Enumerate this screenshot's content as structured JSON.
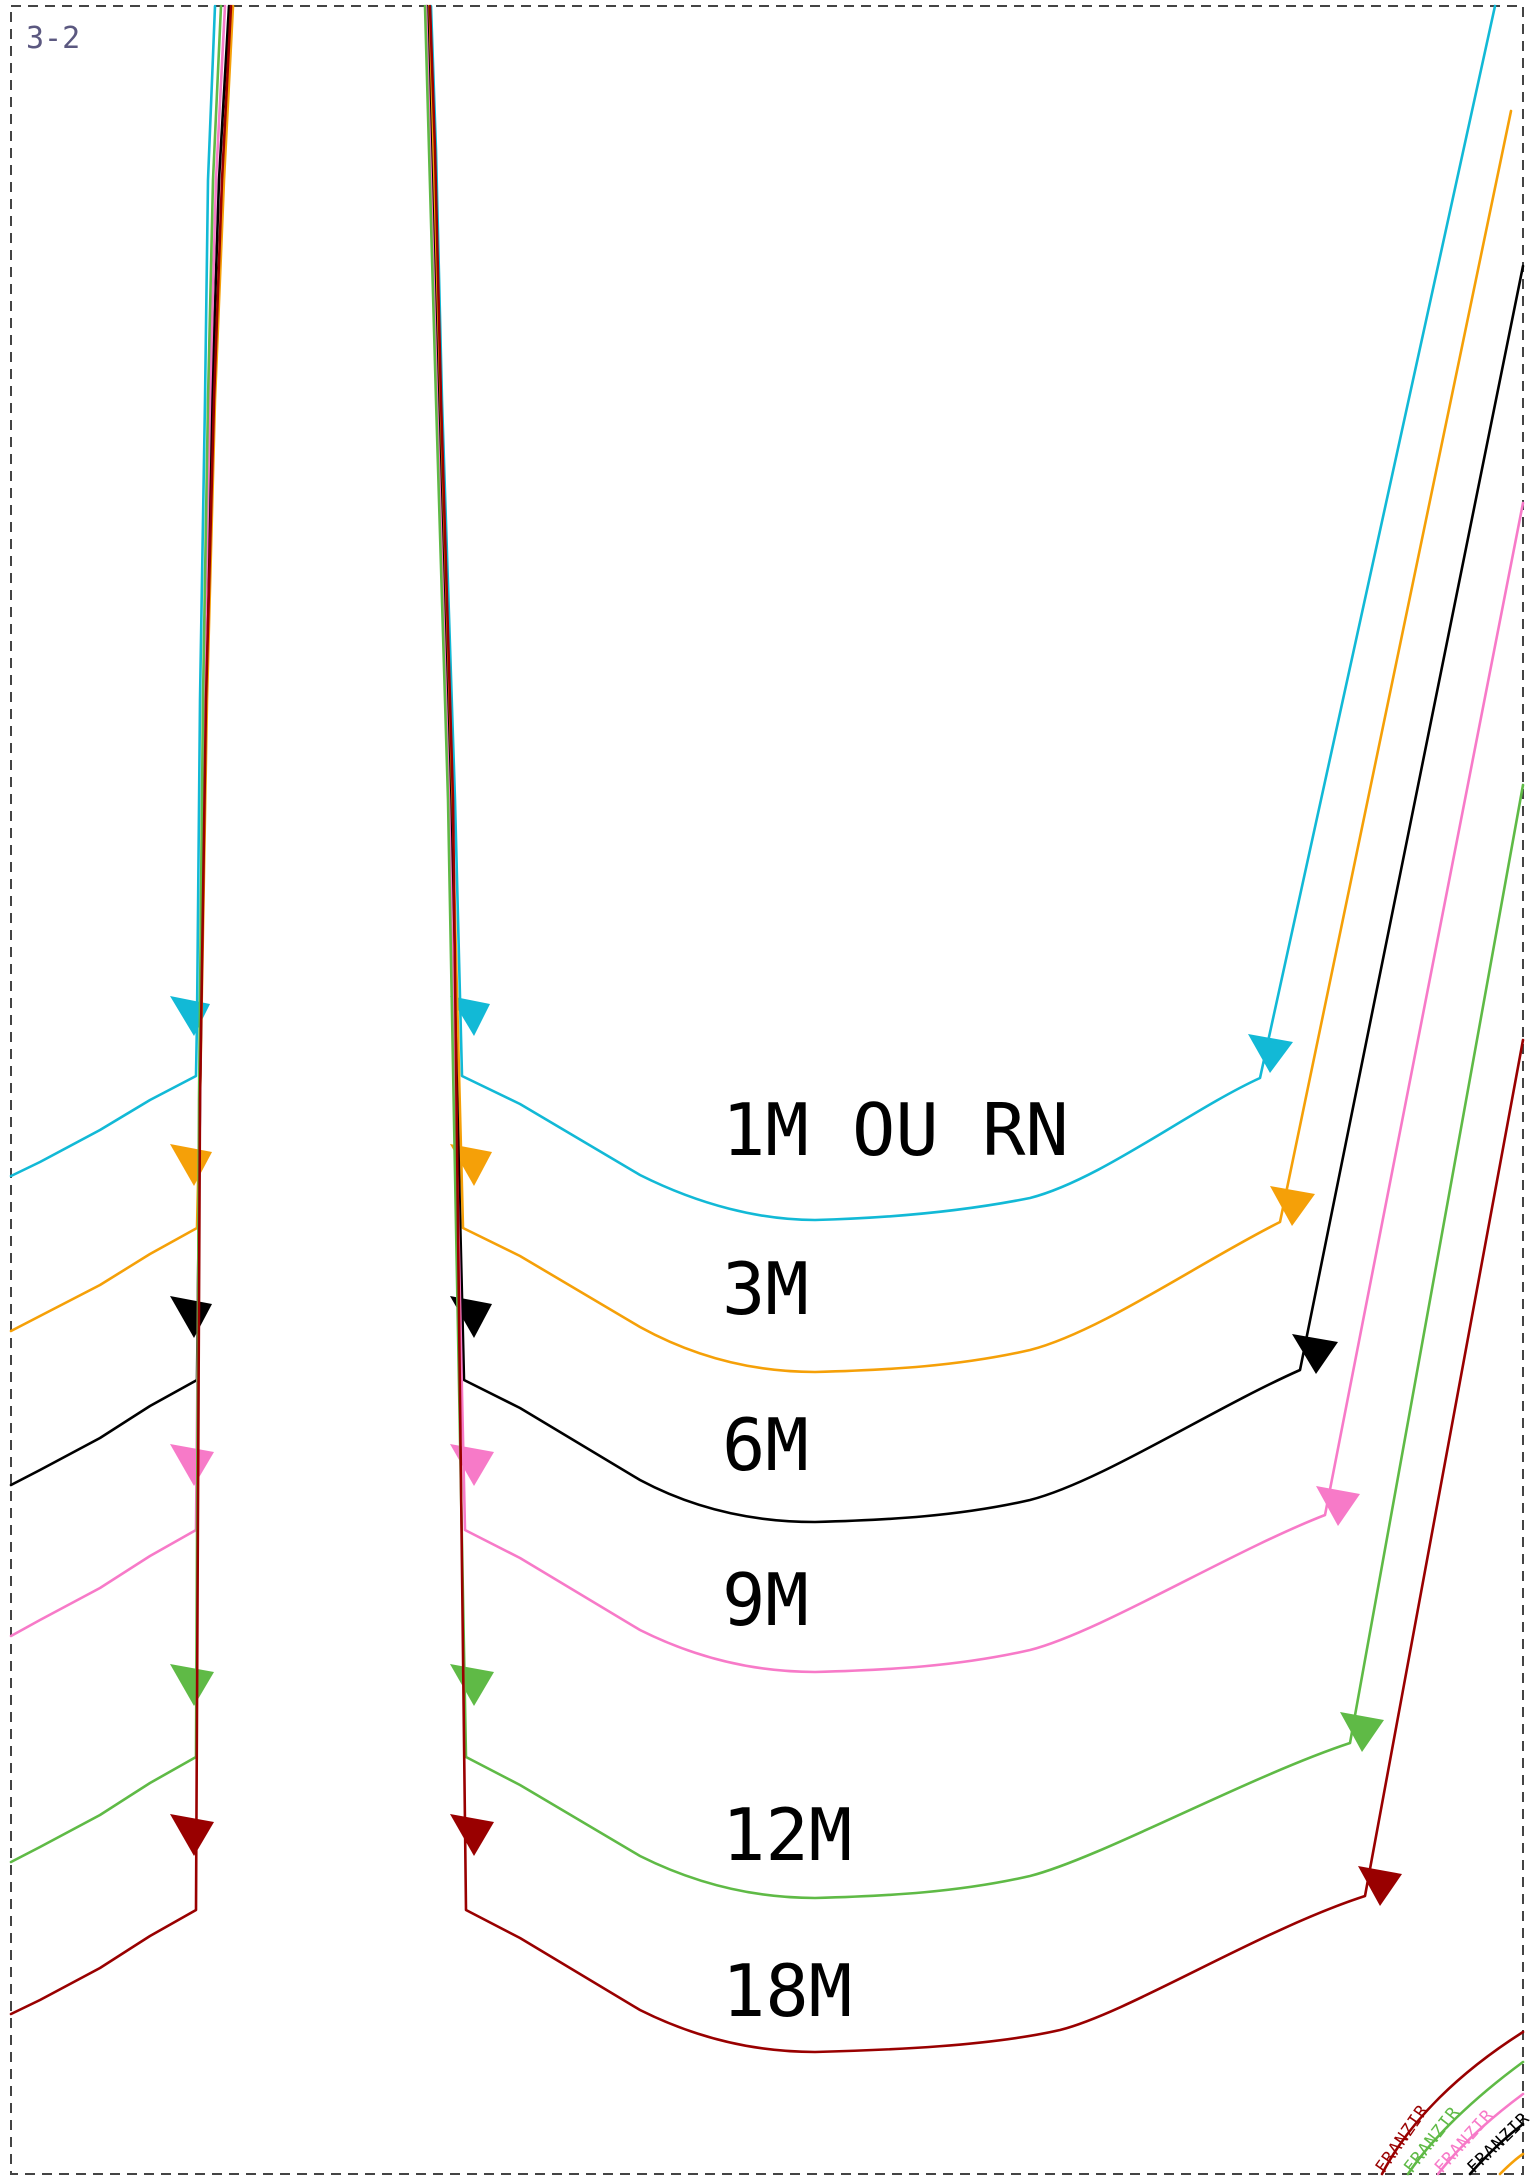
{
  "page_label": "3-2",
  "gather_label": "FRANZIR",
  "sizes": [
    {
      "id": "1m",
      "label": "1M OU RN",
      "color": "#12b9d6"
    },
    {
      "id": "3m",
      "label": "3M",
      "color": "#f5a008"
    },
    {
      "id": "6m",
      "label": "6M",
      "color": "#000000"
    },
    {
      "id": "9m",
      "label": "9M",
      "color": "#f77ac8"
    },
    {
      "id": "12m",
      "label": "12M",
      "color": "#5fba46"
    },
    {
      "id": "18m",
      "label": "18M",
      "color": "#990000"
    }
  ]
}
